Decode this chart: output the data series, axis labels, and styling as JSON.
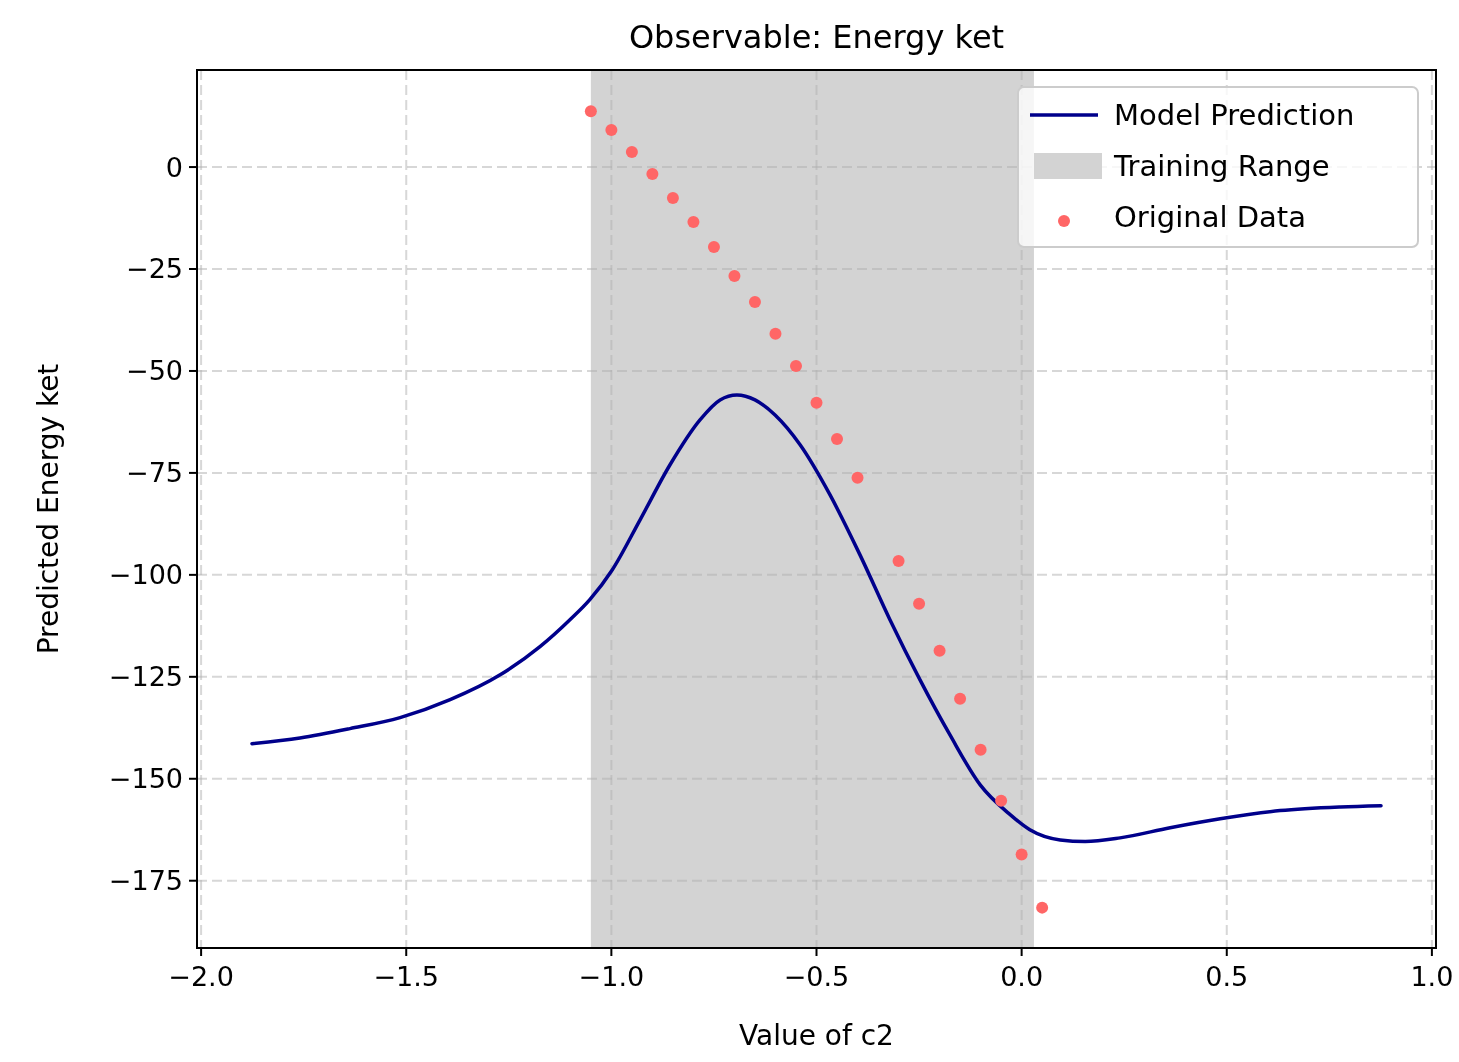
{
  "chart_data": {
    "type": "line",
    "title": "Observable: Energy ket",
    "xlabel": "Value of c2",
    "ylabel": "Predicted Energy ket",
    "xlim": [
      -2.01,
      1.01
    ],
    "ylim": [
      -191.5,
      23.8
    ],
    "xticks": [
      {
        "value": -2,
        "label": "−2.0"
      },
      {
        "value": -1.5,
        "label": "−1.5"
      },
      {
        "value": -1,
        "label": "−1.0"
      },
      {
        "value": -0.5,
        "label": "−0.5"
      },
      {
        "value": 0,
        "label": "0.0"
      },
      {
        "value": 0.5,
        "label": "0.5"
      },
      {
        "value": 1,
        "label": "1.0"
      }
    ],
    "yticks": [
      0,
      {
        "value": -25,
        "label": "−25"
      },
      {
        "value": -50,
        "label": "−50"
      },
      {
        "value": -75,
        "label": "−75"
      },
      {
        "value": -100,
        "label": "−100"
      },
      {
        "value": -125,
        "label": "−125"
      },
      {
        "value": -150,
        "label": "−150"
      },
      {
        "value": -175,
        "label": "−175"
      }
    ],
    "grid": true,
    "legend": "top right",
    "bands": [
      {
        "axis": "x",
        "from": -1.05,
        "to": 0.03,
        "label": "Training Range",
        "color": "#d3d3d3"
      }
    ],
    "series": [
      {
        "name": "Model Prediction",
        "color": "#00008b",
        "marker": "none",
        "line_style": "solid",
        "x": [
          -1.876,
          -1.759,
          -1.637,
          -1.515,
          -1.393,
          -1.271,
          -1.174,
          -1.101,
          -1.052,
          -0.998,
          -0.93,
          -0.857,
          -0.784,
          -0.735,
          -0.694,
          -0.65,
          -0.601,
          -0.54,
          -0.467,
          -0.394,
          -0.321,
          -0.248,
          -0.175,
          -0.101,
          -0.028,
          0.02,
          0.094,
          0.155,
          0.24,
          0.362,
          0.484,
          0.63,
          0.777,
          0.876
        ],
        "values": [
          -141.4,
          -140,
          -137.7,
          -135,
          -130.6,
          -124.5,
          -117.6,
          -111,
          -106,
          -98.8,
          -86.5,
          -73,
          -62,
          -57.1,
          -55.9,
          -57.1,
          -60.8,
          -68.1,
          -80.4,
          -95.1,
          -111,
          -125.7,
          -139.2,
          -151.5,
          -158.8,
          -162.5,
          -165,
          -165.4,
          -164.5,
          -162,
          -159.8,
          -157.8,
          -156.9,
          -156.6
        ]
      },
      {
        "name": "Original Data",
        "type": "scatter",
        "color": "#ff6666",
        "marker": "circle",
        "x": [
          -1.05,
          -1,
          -0.95,
          -0.9,
          -0.85,
          -0.8,
          -0.75,
          -0.7,
          -0.65,
          -0.6,
          -0.55,
          -0.5,
          -0.45,
          -0.4,
          -0.3,
          -0.25,
          -0.2,
          -0.15,
          -0.1,
          -0.05,
          0,
          0.05
        ],
        "values": [
          13.7,
          9.1,
          3.7,
          -1.7,
          -7.6,
          -13.5,
          -19.6,
          -26.7,
          -33.1,
          -40.9,
          -48.8,
          -57.8,
          -66.7,
          -76.2,
          -96.6,
          -107.1,
          -118.6,
          -130.4,
          -142.9,
          -155.4,
          -168.6,
          -181.6
        ]
      }
    ]
  }
}
